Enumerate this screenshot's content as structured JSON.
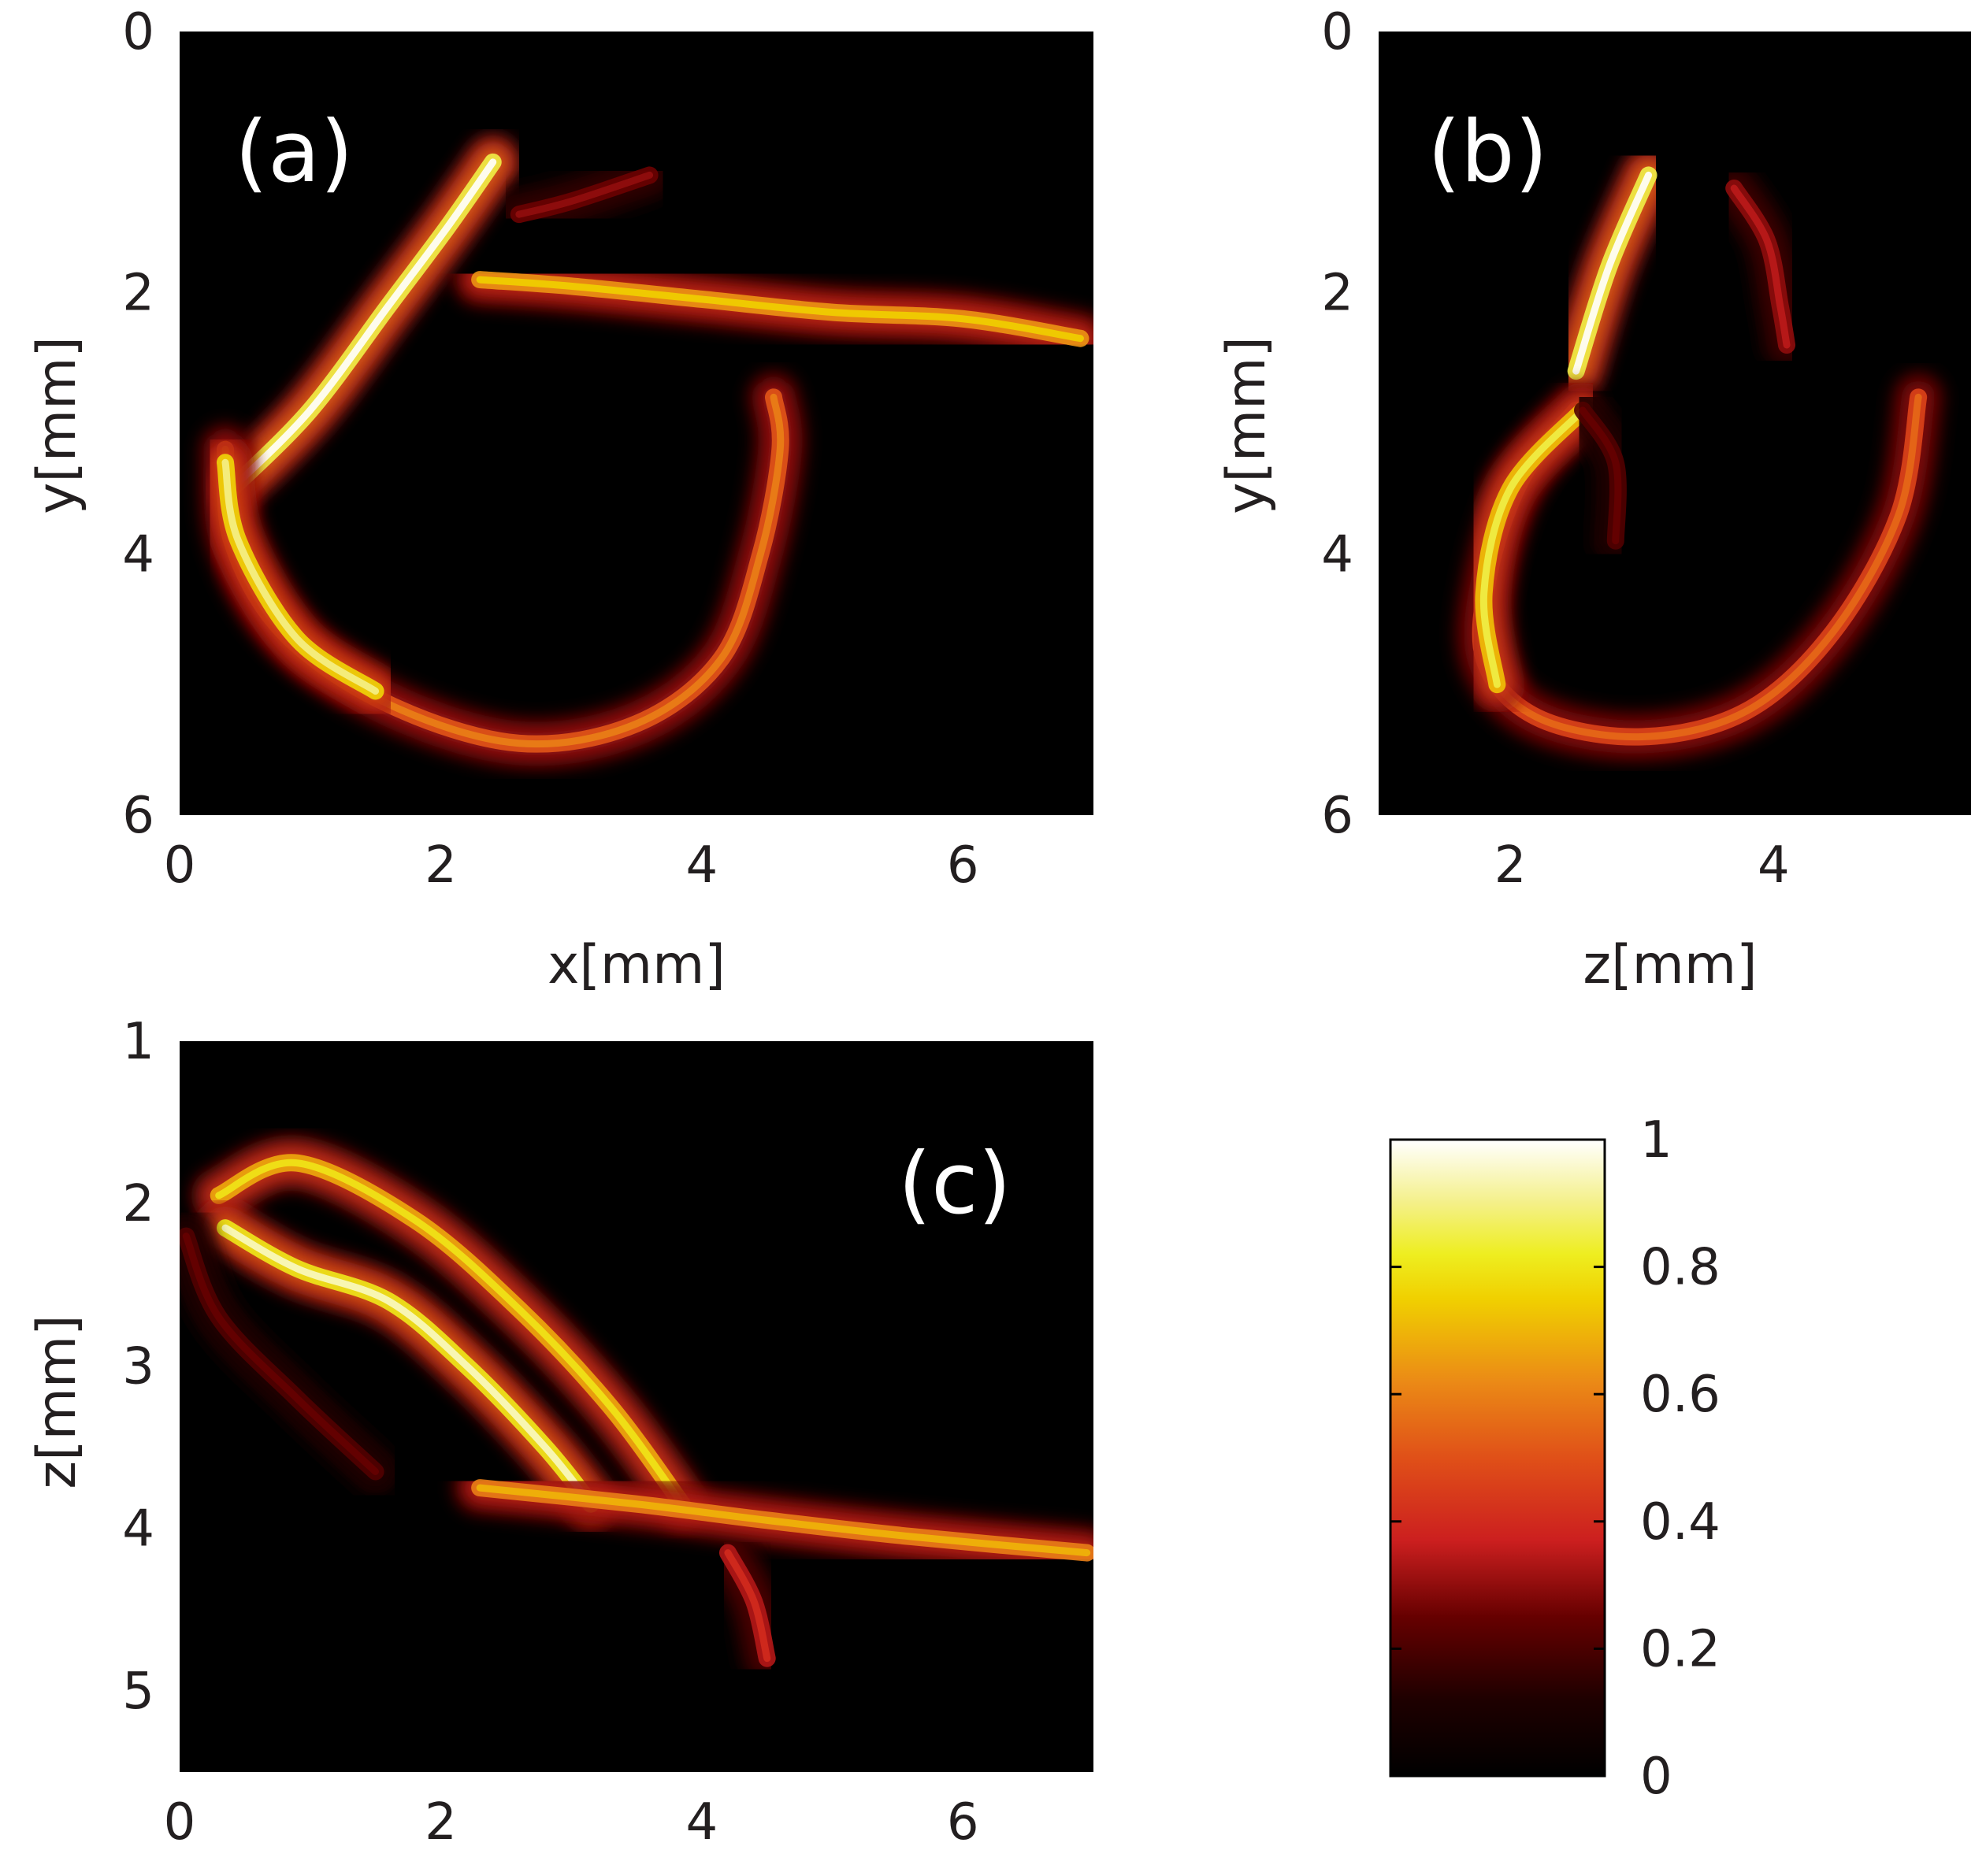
{
  "colors": {
    "axes_background": "#000000",
    "tick_color": "#231f20",
    "panel_label_color": "#ffffff"
  },
  "chart_data": [
    {
      "type": "heatmap",
      "panel_label": "(a)",
      "xlabel": "x[mm]",
      "ylabel": "y[mm]",
      "xlim": [
        0,
        7
      ],
      "ylim": [
        6,
        0
      ],
      "xticks": [
        0,
        2,
        4,
        6
      ],
      "yticks": [
        0,
        2,
        4,
        6
      ],
      "structures": [
        {
          "points": [
            [
              0.4,
              3.5
            ],
            [
              1.0,
              2.9
            ],
            [
              1.6,
              2.1
            ],
            [
              2.05,
              1.5
            ],
            [
              2.4,
              1.0
            ]
          ],
          "intensity": 1.0
        },
        {
          "points": [
            [
              0.35,
              3.2
            ],
            [
              0.4,
              3.9
            ],
            [
              0.8,
              4.6
            ],
            [
              1.6,
              5.15
            ],
            [
              2.6,
              5.45
            ],
            [
              3.5,
              5.3
            ],
            [
              4.15,
              4.8
            ],
            [
              4.45,
              4.0
            ],
            [
              4.6,
              3.2
            ],
            [
              4.55,
              2.8
            ]
          ],
          "intensity": 0.6
        },
        {
          "points": [
            [
              0.35,
              3.3
            ],
            [
              0.45,
              3.9
            ],
            [
              0.9,
              4.65
            ],
            [
              1.5,
              5.05
            ]
          ],
          "intensity": 0.9
        },
        {
          "points": [
            [
              2.3,
              1.9
            ],
            [
              3.0,
              1.95
            ],
            [
              4.0,
              2.05
            ],
            [
              5.0,
              2.15
            ],
            [
              6.0,
              2.2
            ],
            [
              6.9,
              2.35
            ]
          ],
          "intensity": 0.75
        },
        {
          "points": [
            [
              2.6,
              1.4
            ],
            [
              3.0,
              1.3
            ],
            [
              3.6,
              1.1
            ]
          ],
          "intensity": 0.3
        }
      ]
    },
    {
      "type": "heatmap",
      "panel_label": "(b)",
      "xlabel": "z[mm]",
      "ylabel": "y[mm]",
      "xlim": [
        1,
        5.5
      ],
      "ylim": [
        6,
        0
      ],
      "xticks": [
        2,
        4
      ],
      "yticks": [
        0,
        2,
        4,
        6
      ],
      "structures": [
        {
          "points": [
            [
              2.5,
              2.6
            ],
            [
              2.75,
              1.8
            ],
            [
              3.05,
              1.1
            ]
          ],
          "intensity": 1.0
        },
        {
          "points": [
            [
              2.5,
              2.9
            ],
            [
              2.1,
              3.4
            ],
            [
              1.85,
              4.1
            ],
            [
              1.8,
              4.8
            ],
            [
              2.2,
              5.25
            ],
            [
              3.0,
              5.4
            ],
            [
              3.8,
              5.2
            ],
            [
              4.45,
              4.6
            ],
            [
              4.95,
              3.7
            ],
            [
              5.1,
              2.8
            ]
          ],
          "intensity": 0.55
        },
        {
          "points": [
            [
              2.55,
              2.9
            ],
            [
              2.0,
              3.5
            ],
            [
              1.8,
              4.3
            ],
            [
              1.9,
              5.0
            ]
          ],
          "intensity": 0.85
        },
        {
          "points": [
            [
              3.7,
              1.2
            ],
            [
              3.95,
              1.6
            ],
            [
              4.05,
              2.1
            ],
            [
              4.1,
              2.4
            ]
          ],
          "intensity": 0.35
        },
        {
          "points": [
            [
              2.55,
              2.9
            ],
            [
              2.8,
              3.3
            ],
            [
              2.8,
              3.9
            ]
          ],
          "intensity": 0.25
        }
      ]
    },
    {
      "type": "heatmap",
      "panel_label": "(c)",
      "xlabel": "",
      "ylabel": "z[mm]",
      "xlim": [
        0,
        7
      ],
      "ylim": [
        5.5,
        1
      ],
      "xticks": [
        0,
        2,
        4,
        6
      ],
      "yticks": [
        1,
        2,
        3,
        4,
        5
      ],
      "structures": [
        {
          "points": [
            [
              0.3,
              1.95
            ],
            [
              0.9,
              1.75
            ],
            [
              1.8,
              2.1
            ],
            [
              2.6,
              2.65
            ],
            [
              3.3,
              3.25
            ],
            [
              3.85,
              3.85
            ]
          ],
          "intensity": 0.8
        },
        {
          "points": [
            [
              0.35,
              2.15
            ],
            [
              0.9,
              2.4
            ],
            [
              1.6,
              2.6
            ],
            [
              2.2,
              3.0
            ],
            [
              2.8,
              3.5
            ],
            [
              3.15,
              3.85
            ]
          ],
          "intensity": 0.95
        },
        {
          "points": [
            [
              2.3,
              3.75
            ],
            [
              3.5,
              3.85
            ],
            [
              4.5,
              3.95
            ],
            [
              5.6,
              4.05
            ],
            [
              6.95,
              4.15
            ]
          ],
          "intensity": 0.7
        },
        {
          "points": [
            [
              0.05,
              2.2
            ],
            [
              0.3,
              2.7
            ],
            [
              0.9,
              3.2
            ],
            [
              1.5,
              3.65
            ]
          ],
          "intensity": 0.25
        },
        {
          "points": [
            [
              4.2,
              4.15
            ],
            [
              4.4,
              4.45
            ],
            [
              4.5,
              4.8
            ]
          ],
          "intensity": 0.4
        }
      ]
    },
    {
      "type": "colorbar",
      "range": [
        0,
        1
      ],
      "ticks": [
        0,
        0.2,
        0.4,
        0.6,
        0.8,
        1
      ],
      "tick_labels": [
        "0",
        "0.2",
        "0.4",
        "0.6",
        "0.8",
        "1"
      ],
      "colormap": "hot"
    }
  ]
}
